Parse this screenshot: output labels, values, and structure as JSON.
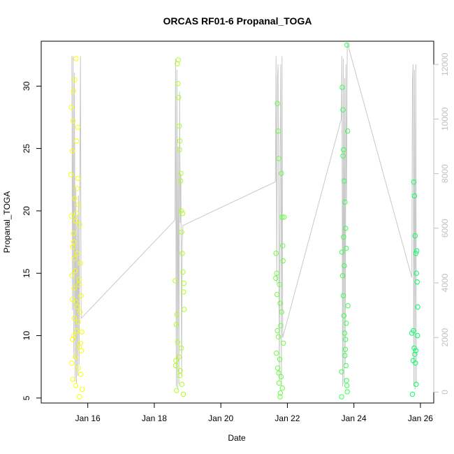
{
  "chart_data": {
    "type": "scatter",
    "title": "ORCAS RF01-6 Propanal_TOGA",
    "xlabel": "Date",
    "ylabel": "Propanal_TOGA",
    "x_unit": "days (January)",
    "xlim": [
      14.6,
      26.4
    ],
    "ylim": [
      4.6,
      33.6
    ],
    "x_ticks": [
      {
        "value": 16,
        "label": "Jan 16"
      },
      {
        "value": 18,
        "label": "Jan 18"
      },
      {
        "value": 20,
        "label": "Jan 20"
      },
      {
        "value": 22,
        "label": "Jan 22"
      },
      {
        "value": 24,
        "label": "Jan 24"
      },
      {
        "value": 26,
        "label": "Jan 26"
      }
    ],
    "y_ticks": [
      5,
      10,
      15,
      20,
      25,
      30
    ],
    "y2_ticks": [
      0,
      2000,
      4000,
      6000,
      8000,
      10000,
      12000
    ],
    "y2lim": [
      -400,
      12850
    ],
    "y2_axis_color": "#c0c0c0",
    "point_color_start": "#ffff00",
    "point_color_end": "#00ff66",
    "series": [
      {
        "values": [
          [
            15.49,
            22.9
          ],
          [
            15.51,
            19.6
          ],
          [
            15.52,
            14.8
          ],
          [
            15.53,
            12.9
          ],
          [
            15.54,
            9.7
          ],
          [
            15.55,
            6.5
          ],
          [
            15.56,
            27.2
          ],
          [
            15.57,
            18.2
          ],
          [
            15.58,
            17.5
          ],
          [
            15.59,
            13.8
          ],
          [
            15.6,
            11.4
          ],
          [
            15.61,
            21.0
          ],
          [
            15.62,
            15.2
          ],
          [
            15.63,
            8.3
          ],
          [
            15.64,
            6.0
          ],
          [
            15.65,
            32.2
          ],
          [
            15.66,
            19.8
          ],
          [
            15.67,
            10.4
          ],
          [
            15.68,
            16.6
          ],
          [
            15.69,
            12.3
          ],
          [
            15.7,
            26.7
          ],
          [
            15.71,
            7.4
          ],
          [
            15.72,
            20.5
          ],
          [
            15.73,
            14.1
          ],
          [
            15.74,
            9.1
          ],
          [
            15.75,
            5.1
          ],
          [
            15.76,
            18.9
          ],
          [
            15.77,
            11.9
          ],
          [
            15.78,
            15.8
          ],
          [
            15.79,
            6.9
          ],
          [
            15.8,
            13.2
          ],
          [
            15.81,
            8.8
          ],
          [
            15.82,
            10.3
          ],
          [
            15.83,
            5.7
          ],
          [
            15.5,
            28.3
          ],
          [
            15.53,
            24.8
          ],
          [
            15.57,
            29.6
          ],
          [
            15.61,
            30.5
          ],
          [
            15.66,
            25.6
          ],
          [
            15.7,
            22.6
          ],
          [
            15.55,
            17.1
          ],
          [
            15.6,
            16.2
          ],
          [
            15.65,
            12.7
          ],
          [
            15.72,
            11.1
          ],
          [
            15.78,
            9.4
          ],
          [
            15.52,
            7.8
          ],
          [
            15.63,
            19.2
          ],
          [
            15.74,
            14.5
          ],
          [
            15.68,
            21.8
          ],
          [
            15.58,
            10.0
          ],
          [
            18.63,
            14.4
          ],
          [
            18.65,
            8.0
          ],
          [
            18.67,
            5.6
          ],
          [
            18.69,
            31.8
          ],
          [
            18.71,
            30.2
          ],
          [
            18.73,
            29.1
          ],
          [
            18.75,
            26.8
          ],
          [
            18.77,
            25.6
          ],
          [
            18.79,
            22.4
          ],
          [
            18.81,
            20.0
          ],
          [
            18.82,
            18.3
          ],
          [
            18.84,
            16.6
          ],
          [
            18.86,
            15.1
          ],
          [
            18.88,
            13.5
          ],
          [
            18.9,
            12.1
          ],
          [
            18.66,
            10.9
          ],
          [
            18.7,
            9.5
          ],
          [
            18.74,
            8.3
          ],
          [
            18.78,
            7.2
          ],
          [
            18.83,
            6.1
          ],
          [
            18.87,
            5.3
          ],
          [
            18.72,
            32.1
          ],
          [
            18.76,
            24.9
          ],
          [
            18.8,
            23.0
          ],
          [
            18.85,
            19.8
          ],
          [
            18.68,
            11.7
          ],
          [
            18.89,
            14.2
          ],
          [
            18.64,
            7.6
          ],
          [
            18.77,
            6.8
          ],
          [
            18.81,
            9.0
          ],
          [
            21.66,
            16.6
          ],
          [
            21.68,
            15.0
          ],
          [
            21.7,
            28.6
          ],
          [
            21.72,
            26.4
          ],
          [
            21.74,
            24.2
          ],
          [
            21.76,
            14.1
          ],
          [
            21.78,
            12.6
          ],
          [
            21.8,
            10.8
          ],
          [
            21.82,
            23.0
          ],
          [
            21.84,
            19.5
          ],
          [
            21.86,
            17.2
          ],
          [
            21.88,
            9.4
          ],
          [
            21.67,
            8.6
          ],
          [
            21.71,
            7.4
          ],
          [
            21.75,
            6.2
          ],
          [
            21.79,
            5.4
          ],
          [
            21.83,
            11.9
          ],
          [
            21.87,
            16.0
          ],
          [
            21.9,
            19.5
          ],
          [
            21.69,
            13.3
          ],
          [
            21.73,
            9.9
          ],
          [
            21.77,
            8.1
          ],
          [
            21.81,
            6.7
          ],
          [
            21.85,
            5.8
          ],
          [
            21.65,
            14.6
          ],
          [
            21.7,
            10.4
          ],
          [
            21.74,
            7.0
          ],
          [
            21.78,
            5.1
          ],
          [
            23.63,
            7.1
          ],
          [
            23.65,
            29.9
          ],
          [
            23.67,
            28.1
          ],
          [
            23.69,
            24.9
          ],
          [
            23.71,
            22.4
          ],
          [
            23.73,
            20.7
          ],
          [
            23.75,
            18.6
          ],
          [
            23.77,
            17.0
          ],
          [
            23.79,
            33.3
          ],
          [
            23.81,
            26.4
          ],
          [
            23.64,
            16.7
          ],
          [
            23.66,
            14.8
          ],
          [
            23.68,
            13.2
          ],
          [
            23.7,
            11.6
          ],
          [
            23.72,
            10.2
          ],
          [
            23.74,
            8.9
          ],
          [
            23.76,
            7.6
          ],
          [
            23.78,
            6.4
          ],
          [
            23.8,
            5.5
          ],
          [
            23.82,
            12.4
          ],
          [
            23.67,
            24.4
          ],
          [
            23.71,
            15.6
          ],
          [
            23.75,
            9.7
          ],
          [
            23.79,
            6.0
          ],
          [
            23.63,
            5.1
          ],
          [
            23.73,
            8.4
          ],
          [
            23.77,
            11.0
          ],
          [
            23.69,
            17.9
          ],
          [
            25.74,
            10.2
          ],
          [
            25.76,
            5.3
          ],
          [
            25.78,
            8.0
          ],
          [
            25.8,
            22.3
          ],
          [
            25.82,
            21.2
          ],
          [
            25.84,
            18.0
          ],
          [
            25.86,
            16.6
          ],
          [
            25.88,
            15.0
          ],
          [
            25.9,
            14.3
          ],
          [
            25.92,
            12.3
          ],
          [
            25.79,
            10.4
          ],
          [
            25.81,
            9.0
          ],
          [
            25.83,
            8.5
          ],
          [
            25.85,
            7.8
          ],
          [
            25.87,
            6.1
          ],
          [
            25.89,
            16.8
          ],
          [
            25.91,
            10.0
          ],
          [
            25.86,
            8.8
          ]
        ]
      }
    ],
    "secondary_series": {
      "axis": "right",
      "color": "#c8c8c8",
      "points": [
        [
          15.52,
          12300
        ],
        [
          15.54,
          3000
        ],
        [
          15.56,
          12300
        ],
        [
          15.58,
          1200
        ],
        [
          15.6,
          11700
        ],
        [
          15.62,
          400
        ],
        [
          15.64,
          7500
        ],
        [
          15.66,
          300
        ],
        [
          15.68,
          6500
        ],
        [
          15.7,
          600
        ],
        [
          15.72,
          7200
        ],
        [
          15.74,
          1000
        ],
        [
          15.76,
          7300
        ],
        [
          15.78,
          12300
        ],
        [
          15.8,
          2700
        ],
        [
          18.62,
          6300
        ],
        [
          18.64,
          12200
        ],
        [
          18.66,
          200
        ],
        [
          18.68,
          11800
        ],
        [
          18.7,
          100
        ],
        [
          18.72,
          9000
        ],
        [
          18.74,
          300
        ],
        [
          18.76,
          11000
        ],
        [
          18.78,
          6200
        ],
        [
          18.8,
          8000
        ],
        [
          18.82,
          600
        ],
        [
          18.84,
          5500
        ],
        [
          18.86,
          6100
        ],
        [
          21.64,
          7700
        ],
        [
          21.66,
          12300
        ],
        [
          21.68,
          4000
        ],
        [
          21.7,
          11500
        ],
        [
          21.72,
          12000
        ],
        [
          21.74,
          6000
        ],
        [
          21.76,
          400
        ],
        [
          21.78,
          9000
        ],
        [
          21.8,
          12000
        ],
        [
          21.82,
          200
        ],
        [
          21.84,
          12300
        ],
        [
          21.86,
          2000
        ],
        [
          23.62,
          10000
        ],
        [
          23.64,
          12300
        ],
        [
          23.66,
          200
        ],
        [
          23.68,
          12200
        ],
        [
          23.7,
          300
        ],
        [
          23.72,
          11500
        ],
        [
          23.74,
          1000
        ],
        [
          23.76,
          12000
        ],
        [
          23.78,
          7000
        ],
        [
          23.8,
          12800
        ],
        [
          25.74,
          4200
        ],
        [
          25.76,
          11400
        ],
        [
          25.78,
          12000
        ],
        [
          25.8,
          200
        ],
        [
          25.82,
          11800
        ],
        [
          25.84,
          100
        ],
        [
          25.86,
          12000
        ],
        [
          25.88,
          300
        ]
      ]
    }
  }
}
